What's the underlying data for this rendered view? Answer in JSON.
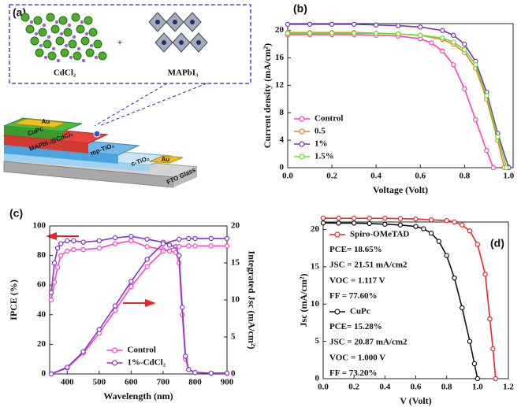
{
  "diagram": {
    "label": "(a)",
    "left_crystal": "CdCl₂",
    "plus": "+",
    "right_crystal": "MAPbI₃",
    "layers": [
      "Au",
      "CuPc",
      "MAPbI₃@CdCl₂",
      "mp-TiO₂",
      "c-TiO₂",
      "Au",
      "FTO Glass"
    ]
  },
  "chart_data": [
    {
      "type": "line",
      "label": "(b)",
      "xlabel": "Voltage (Volt)",
      "ylabel": "Current density (mA/cm²)",
      "xlim": [
        0,
        1.02
      ],
      "ylim": [
        0,
        21
      ],
      "xticks": [
        {
          "value": 0,
          "label": "0.0"
        },
        0.2,
        0.4,
        0.6,
        0.8,
        {
          "value": 1,
          "label": "1.0"
        }
      ],
      "yticks": [
        0,
        4,
        8,
        12,
        16,
        20
      ],
      "grid": false,
      "legend": "lower left",
      "series": [
        {
          "name": "Control",
          "color": "#ff3fbf",
          "x": [
            0,
            0.1,
            0.2,
            0.3,
            0.4,
            0.5,
            0.6,
            0.65,
            0.7,
            0.75,
            0.8,
            0.85,
            0.9,
            0.93
          ],
          "values": [
            19.4,
            19.4,
            19.4,
            19.4,
            19.3,
            19.2,
            18.8,
            18.2,
            17,
            15,
            11.5,
            7,
            2.5,
            0
          ]
        },
        {
          "name": "0.5",
          "color": "#f08030",
          "x": [
            0,
            0.1,
            0.2,
            0.3,
            0.4,
            0.5,
            0.6,
            0.7,
            0.75,
            0.8,
            0.85,
            0.9,
            0.95,
            0.98
          ],
          "values": [
            19.7,
            19.7,
            19.7,
            19.7,
            19.6,
            19.5,
            19.3,
            18.7,
            18,
            16.8,
            14.5,
            10,
            4,
            0
          ]
        },
        {
          "name": "1%",
          "color": "#7a2fbf",
          "x": [
            0,
            0.1,
            0.2,
            0.3,
            0.4,
            0.5,
            0.6,
            0.7,
            0.75,
            0.8,
            0.85,
            0.9,
            0.95,
            1.0
          ],
          "values": [
            20.9,
            20.9,
            20.9,
            20.9,
            20.8,
            20.7,
            20.5,
            20,
            19.3,
            18,
            15.5,
            11,
            5,
            0
          ]
        },
        {
          "name": "1.5%",
          "color": "#66dd22",
          "x": [
            0,
            0.1,
            0.2,
            0.3,
            0.4,
            0.5,
            0.6,
            0.7,
            0.75,
            0.8,
            0.85,
            0.9,
            0.95,
            0.99
          ],
          "values": [
            19.6,
            19.6,
            19.6,
            19.6,
            19.6,
            19.5,
            19.3,
            18.9,
            18.3,
            17.2,
            15,
            10.5,
            4.5,
            0
          ]
        }
      ]
    },
    {
      "type": "line",
      "label": "(c)",
      "xlabel": "Wavelength (nm)",
      "ylabel": "IPCE (%)",
      "y2label": "Integrated Jsc (mA/cm²)",
      "xlim": [
        345,
        900
      ],
      "ylim": [
        0,
        100
      ],
      "y2lim": [
        0,
        20
      ],
      "xticks": [
        400,
        500,
        600,
        700,
        800,
        900
      ],
      "yticks": [
        0,
        20,
        40,
        60,
        80,
        100
      ],
      "y2ticks": [
        0,
        5,
        10,
        15,
        20
      ],
      "grid": false,
      "legend": "lower center",
      "series": [
        {
          "name": "Control",
          "color": "#ff44cc",
          "x": [
            350,
            360,
            370,
            380,
            400,
            420,
            450,
            500,
            550,
            600,
            650,
            700,
            720,
            740,
            750,
            760,
            770,
            780,
            800,
            850,
            900
          ],
          "values": [
            50,
            62,
            72,
            80,
            83,
            84,
            84,
            85,
            88,
            90,
            86,
            84,
            83,
            82,
            75,
            40,
            10,
            3,
            1,
            0.5,
            0.5
          ]
        },
        {
          "name": "1%-CdCl₂",
          "color": "#8833cc",
          "x": [
            350,
            360,
            370,
            380,
            400,
            420,
            450,
            500,
            550,
            600,
            650,
            700,
            720,
            740,
            750,
            760,
            770,
            780,
            800,
            850,
            900
          ],
          "values": [
            55,
            75,
            85,
            88,
            90,
            90,
            89,
            90,
            92,
            93,
            91,
            89,
            87,
            86,
            80,
            45,
            12,
            3,
            1,
            0.5,
            0.5
          ]
        },
        {
          "color": "#ff44cc",
          "axis": "y2",
          "x": [
            350,
            400,
            450,
            500,
            550,
            600,
            650,
            700,
            750,
            780,
            800,
            850,
            900
          ],
          "values": [
            0,
            0.8,
            2.8,
            5.5,
            8.6,
            11.8,
            14.5,
            16.6,
            17.2,
            17.3,
            17.3,
            17.3,
            17.3
          ]
        },
        {
          "color": "#8833cc",
          "axis": "y2",
          "x": [
            350,
            400,
            450,
            500,
            550,
            600,
            650,
            700,
            750,
            780,
            800,
            850,
            900
          ],
          "values": [
            0,
            0.9,
            3,
            6,
            9.2,
            12.5,
            15.5,
            17.6,
            18.2,
            18.3,
            18.3,
            18.3,
            18.3
          ]
        }
      ]
    },
    {
      "type": "line",
      "label": "(d)",
      "xlabel": "V (Volt)",
      "ylabel": "Jsc (mA/cm²)",
      "xlim": [
        0,
        1.2
      ],
      "ylim": [
        0,
        21
      ],
      "xticks": [
        {
          "value": 0,
          "label": "0.0"
        },
        0.2,
        0.4,
        0.6,
        0.8,
        {
          "value": 1,
          "label": "1.0"
        },
        1.2
      ],
      "yticks": [
        0,
        5,
        10,
        15,
        20
      ],
      "grid": false,
      "legend": "upper left",
      "series": [
        {
          "name": "Spiro-OMeTAD",
          "color": "#e8262a",
          "stats": [
            "PCE= 18.65%",
            "JSC = 21.51 mA/cm2",
            "VOC = 1.117 V",
            "FF = 77.60%"
          ],
          "x": [
            0,
            0.1,
            0.2,
            0.3,
            0.4,
            0.5,
            0.6,
            0.7,
            0.8,
            0.85,
            0.9,
            0.95,
            1.0,
            1.05,
            1.08,
            1.1,
            1.117
          ],
          "values": [
            21.51,
            21.5,
            21.5,
            21.5,
            21.5,
            21.45,
            21.4,
            21.3,
            21.2,
            21,
            20.6,
            19.8,
            18,
            14,
            8,
            4,
            0
          ]
        },
        {
          "name": "CuPc",
          "color": "#111111",
          "stats": [
            "PCE= 15.28%",
            "JSC = 20.87 mA/cm2",
            "VOC = 1.000 V",
            "FF = 73.20%"
          ],
          "x": [
            0,
            0.1,
            0.2,
            0.3,
            0.4,
            0.5,
            0.6,
            0.65,
            0.7,
            0.75,
            0.8,
            0.85,
            0.9,
            0.95,
            0.98,
            1.0
          ],
          "values": [
            20.87,
            20.85,
            20.85,
            20.8,
            20.7,
            20.6,
            20.4,
            20.1,
            19.5,
            18.4,
            16.5,
            13.5,
            9.5,
            5,
            2,
            0
          ]
        }
      ]
    }
  ]
}
